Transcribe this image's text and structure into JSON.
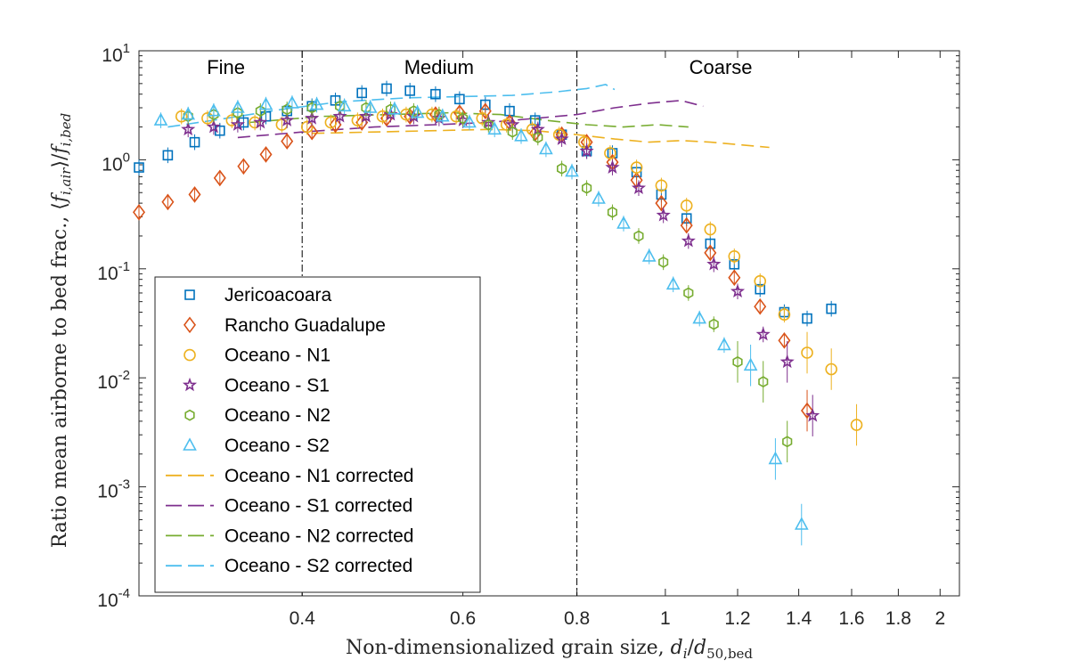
{
  "chart_data": {
    "type": "scatter",
    "xscale": "log",
    "yscale": "log",
    "xlim": [
      0.265,
      2.1
    ],
    "ylim": [
      0.0001,
      10
    ],
    "xticks": [
      {
        "value": 0.4,
        "label": "0.4"
      },
      {
        "value": 0.6,
        "label": "0.6"
      },
      {
        "value": 0.8,
        "label": "0.8"
      },
      {
        "value": 1.0,
        "label": "1"
      },
      {
        "value": 1.2,
        "label": "1.2"
      },
      {
        "value": 1.4,
        "label": "1.4"
      },
      {
        "value": 1.6,
        "label": "1.6"
      },
      {
        "value": 1.8,
        "label": "1.8"
      },
      {
        "value": 2.0,
        "label": "2"
      }
    ],
    "yticks": [
      {
        "value": 10,
        "base": "10",
        "exp": "1"
      },
      {
        "value": 1,
        "base": "10",
        "exp": "0"
      },
      {
        "value": 0.1,
        "base": "10",
        "exp": "-1"
      },
      {
        "value": 0.01,
        "base": "10",
        "exp": "-2"
      },
      {
        "value": 0.001,
        "base": "10",
        "exp": "-3"
      },
      {
        "value": 0.0001,
        "base": "10",
        "exp": "-4"
      }
    ],
    "xlabel": {
      "text": "Non-dimensionalized grain size, ",
      "math": "d_i/d_50,bed",
      "var": "d",
      "sub": "i",
      "slash": "/",
      "var2": "d",
      "sub2": "50,bed"
    },
    "ylabel": {
      "text": "Ratio mean airborne to bed frac., ",
      "langle": "⟨",
      "rangle": "⟩",
      "var": "f",
      "sub": "i,air",
      "slash": "/",
      "sub2": "i,bed"
    },
    "grid": false,
    "legend_position": "lower-left",
    "regions": [
      {
        "label": "Fine",
        "x_center": 0.33
      },
      {
        "label": "Medium",
        "x_center": 0.565
      },
      {
        "label": "Coarse",
        "x_center": 1.15
      }
    ],
    "boundaries": [
      0.4,
      0.8
    ],
    "series": [
      {
        "name": "Jericoacoara",
        "marker": "square",
        "color": "#0072BD",
        "x": [
          0.265,
          0.285,
          0.305,
          0.325,
          0.345,
          0.365,
          0.385,
          0.41,
          0.435,
          0.465,
          0.495,
          0.525,
          0.56,
          0.595,
          0.635,
          0.675,
          0.72,
          0.77,
          0.82,
          0.875,
          0.93,
          0.99,
          1.055,
          1.12,
          1.19,
          1.27,
          1.35,
          1.43,
          1.52,
          1.62,
          1.72,
          1.83
        ],
        "y": [
          0.85,
          1.1,
          1.45,
          1.85,
          2.2,
          2.5,
          2.8,
          3.1,
          3.5,
          4.1,
          4.5,
          4.3,
          4.0,
          3.6,
          3.2,
          2.8,
          2.3,
          1.7,
          1.2,
          1.15,
          0.77,
          0.48,
          0.29,
          0.17,
          0.11,
          0.065,
          0.04,
          0.035,
          0.043,
          null,
          null,
          null
        ]
      },
      {
        "name": "Rancho Guadalupe",
        "marker": "diamond",
        "color": "#D95319",
        "x": [
          0.265,
          0.285,
          0.305,
          0.325,
          0.345,
          0.365,
          0.385,
          0.41,
          0.435,
          0.465,
          0.495,
          0.525,
          0.56,
          0.595,
          0.635,
          0.675,
          0.72,
          0.77,
          0.82,
          0.875,
          0.93,
          0.99,
          1.055,
          1.12,
          1.19,
          1.27,
          1.35,
          1.43,
          1.52,
          1.62,
          1.72,
          1.83
        ],
        "y": [
          0.33,
          0.41,
          0.48,
          0.68,
          0.87,
          1.12,
          1.48,
          1.8,
          2.1,
          2.2,
          2.4,
          2.5,
          2.6,
          2.7,
          2.8,
          2.2,
          1.75,
          1.7,
          1.45,
          0.95,
          0.65,
          0.4,
          0.25,
          0.14,
          0.083,
          0.045,
          0.022,
          0.005,
          null,
          null,
          null,
          null
        ]
      },
      {
        "name": "Oceano - N1",
        "marker": "circle",
        "color": "#EDB120",
        "x": [
          0.295,
          0.315,
          0.335,
          0.355,
          0.38,
          0.405,
          0.43,
          0.46,
          0.49,
          0.52,
          0.555,
          0.59,
          0.63,
          0.67,
          0.715,
          0.765,
          0.815,
          0.87,
          0.93,
          0.99,
          1.055,
          1.12,
          1.19,
          1.27,
          1.35,
          1.43,
          1.52,
          1.62,
          1.72,
          1.83,
          1.95
        ],
        "y": [
          2.5,
          2.4,
          2.3,
          2.2,
          2.1,
          2.0,
          2.2,
          2.3,
          2.5,
          2.6,
          2.6,
          2.5,
          2.4,
          2.1,
          1.9,
          1.7,
          1.45,
          1.15,
          0.85,
          0.58,
          0.38,
          0.23,
          0.13,
          0.077,
          0.038,
          0.017,
          0.012,
          0.0037,
          null,
          null,
          null
        ]
      },
      {
        "name": "Oceano - S1",
        "marker": "star",
        "color": "#7E2F8E",
        "x": [
          0.3,
          0.32,
          0.34,
          0.36,
          0.385,
          0.41,
          0.44,
          0.47,
          0.5,
          0.53,
          0.565,
          0.6,
          0.64,
          0.68,
          0.725,
          0.77,
          0.82,
          0.875,
          0.935,
          0.995,
          1.06,
          1.13,
          1.2,
          1.28,
          1.36,
          1.45,
          1.54,
          1.64,
          1.75,
          1.86
        ],
        "y": [
          1.9,
          2.0,
          2.1,
          2.2,
          2.3,
          2.4,
          2.5,
          2.5,
          2.6,
          2.5,
          2.4,
          2.3,
          2.2,
          2.1,
          1.9,
          1.55,
          1.2,
          0.85,
          0.55,
          0.31,
          0.18,
          0.11,
          0.062,
          0.025,
          0.014,
          0.0045,
          null,
          null,
          null,
          null
        ]
      },
      {
        "name": "Oceano - N2",
        "marker": "hexagon",
        "color": "#77AC30",
        "x": [
          0.3,
          0.32,
          0.34,
          0.36,
          0.385,
          0.41,
          0.44,
          0.47,
          0.5,
          0.53,
          0.565,
          0.6,
          0.64,
          0.68,
          0.725,
          0.77,
          0.82,
          0.875,
          0.935,
          0.995,
          1.06,
          1.13,
          1.2,
          1.28,
          1.36,
          1.45,
          1.54,
          1.64,
          1.75
        ],
        "y": [
          2.5,
          2.6,
          2.7,
          2.8,
          2.9,
          3.0,
          3.1,
          3.0,
          2.9,
          2.8,
          2.6,
          2.4,
          2.1,
          1.8,
          1.6,
          0.83,
          0.55,
          0.33,
          0.2,
          0.115,
          0.06,
          0.031,
          0.014,
          0.0092,
          0.0026,
          null,
          null,
          null,
          null
        ]
      },
      {
        "name": "Oceano - S2",
        "marker": "triangle",
        "color": "#4DBEEE",
        "x": [
          0.28,
          0.3,
          0.32,
          0.34,
          0.365,
          0.39,
          0.415,
          0.445,
          0.475,
          0.505,
          0.535,
          0.57,
          0.61,
          0.65,
          0.695,
          0.74,
          0.79,
          0.845,
          0.9,
          0.96,
          1.02,
          1.09,
          1.16,
          1.24,
          1.32,
          1.41,
          1.5,
          1.6,
          1.7
        ],
        "y": [
          2.3,
          2.6,
          2.8,
          3.0,
          3.2,
          3.3,
          3.2,
          3.1,
          3.0,
          2.9,
          2.7,
          2.5,
          2.2,
          1.9,
          1.65,
          1.25,
          0.78,
          0.44,
          0.26,
          0.13,
          0.072,
          0.035,
          0.02,
          0.013,
          0.0018,
          0.00045,
          null,
          null,
          null
        ]
      }
    ],
    "corrected_series": [
      {
        "name": "Oceano - N1 corrected",
        "color": "#EDB120",
        "x": [
          0.41,
          0.48,
          0.56,
          0.64,
          0.72,
          0.8,
          0.88,
          0.96,
          1.04,
          1.12,
          1.2,
          1.3
        ],
        "y": [
          1.75,
          1.8,
          1.85,
          1.9,
          1.85,
          1.7,
          1.55,
          1.45,
          1.5,
          1.45,
          1.38,
          1.3
        ]
      },
      {
        "name": "Oceano - S1 corrected",
        "color": "#7E2F8E",
        "x": [
          0.34,
          0.4,
          0.48,
          0.56,
          0.64,
          0.72,
          0.8,
          0.88,
          0.96,
          1.04,
          1.1
        ],
        "y": [
          1.6,
          1.8,
          2.0,
          2.1,
          2.2,
          2.4,
          2.6,
          3.0,
          3.3,
          3.5,
          3.1
        ]
      },
      {
        "name": "Oceano - N2 corrected",
        "color": "#77AC30",
        "x": [
          0.35,
          0.42,
          0.5,
          0.58,
          0.66,
          0.74,
          0.82,
          0.9,
          0.98,
          1.06
        ],
        "y": [
          2.2,
          2.5,
          2.6,
          2.7,
          2.6,
          2.3,
          2.1,
          2.0,
          2.1,
          2.0
        ]
      },
      {
        "name": "Oceano - S2 corrected",
        "color": "#4DBEEE",
        "x": [
          0.285,
          0.33,
          0.38,
          0.44,
          0.52,
          0.6,
          0.68,
          0.76,
          0.82,
          0.86,
          0.88
        ],
        "y": [
          2.0,
          2.4,
          2.9,
          3.4,
          3.7,
          3.8,
          3.9,
          4.2,
          4.5,
          4.9,
          4.4
        ]
      }
    ]
  }
}
